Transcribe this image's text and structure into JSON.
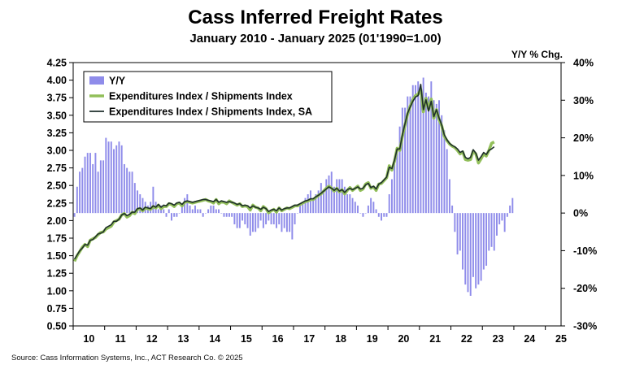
{
  "chart_data": {
    "type": "bar+line",
    "title": "Cass Inferred Freight Rates",
    "subtitle": "January 2010 - January 2025 (01'1990=1.00)",
    "right_axis_title": "Y/Y % Chg.",
    "source": "Source: Cass Information Systems, Inc., ACT Research Co. © 2025",
    "left_axis": {
      "ylim": [
        0.5,
        4.25
      ],
      "ticks": [
        "4.25",
        "4.00",
        "3.75",
        "3.50",
        "3.25",
        "3.00",
        "2.75",
        "2.50",
        "2.25",
        "2.00",
        "1.75",
        "1.50",
        "1.25",
        "1.00",
        "0.75",
        "0.50"
      ]
    },
    "right_axis": {
      "ylim": [
        -30,
        40
      ],
      "ticks": [
        "40%",
        "30%",
        "20%",
        "10%",
        "0%",
        "-10%",
        "-20%",
        "-30%"
      ]
    },
    "x_ticks": [
      "10",
      "11",
      "12",
      "13",
      "14",
      "15",
      "16",
      "17",
      "18",
      "19",
      "20",
      "21",
      "22",
      "23",
      "24",
      "25"
    ],
    "legend": [
      "Y/Y",
      "Expenditures Index / Shipments Index",
      "Expenditures Index / Shipments Index, SA"
    ],
    "colors": {
      "bars": "#8f8cea",
      "nsa": "#92bf5a",
      "sa": "#1f2f2b"
    },
    "series": [
      {
        "name": "Y/Y",
        "kind": "bar",
        "unit": "%",
        "x_start": 2010,
        "values": [
          -1,
          7,
          11,
          12,
          15,
          16,
          16,
          13,
          16,
          11,
          14,
          14,
          20,
          19,
          19,
          17,
          18,
          19,
          18,
          13,
          12,
          11,
          11,
          8,
          6,
          5,
          4,
          3,
          2,
          3,
          7,
          3,
          1,
          2,
          1,
          -1,
          1,
          -2,
          -1,
          -1,
          0,
          2,
          4,
          5,
          2,
          1,
          2,
          1,
          1,
          -1,
          0,
          1,
          2,
          2,
          1,
          1,
          0,
          -1,
          -1,
          -1,
          -1,
          -3,
          -4,
          -4,
          -2,
          -3,
          -4,
          -6,
          -5,
          -5,
          -4,
          -2,
          -4,
          -3,
          -2,
          -3,
          -3,
          -4,
          -3,
          -5,
          -4,
          -5,
          -5,
          -7,
          -3,
          0,
          2,
          3,
          4,
          5,
          6,
          4,
          5,
          6,
          8,
          6,
          9,
          10,
          11,
          7,
          9,
          9,
          9,
          7,
          5,
          5,
          4,
          3,
          2,
          0,
          -1,
          0,
          2,
          4,
          3,
          1,
          -1,
          -2,
          -1,
          -1,
          5,
          9,
          13,
          17,
          23,
          28,
          28,
          31,
          31,
          34,
          34,
          35,
          34,
          36,
          32,
          31,
          35,
          30,
          29,
          30,
          26,
          22,
          17,
          9,
          2,
          -5,
          -11,
          -10,
          -15,
          -19,
          -21,
          -22,
          -17,
          -20,
          -19,
          -18,
          -15,
          -14,
          -10,
          -9,
          -10,
          -6,
          -3,
          -2,
          -5,
          -1,
          2,
          4
        ]
      },
      {
        "name": "Expenditures Index / Shipments Index",
        "kind": "line",
        "x_start": 2010,
        "values": [
          1.42,
          1.5,
          1.56,
          1.62,
          1.66,
          1.63,
          1.72,
          1.74,
          1.76,
          1.8,
          1.83,
          1.84,
          1.88,
          1.9,
          1.92,
          1.98,
          2.0,
          2.02,
          2.08,
          2.1,
          2.05,
          2.07,
          2.12,
          2.1,
          2.16,
          2.17,
          2.14,
          2.18,
          2.17,
          2.16,
          2.2,
          2.18,
          2.22,
          2.17,
          2.2,
          2.2,
          2.24,
          2.23,
          2.2,
          2.24,
          2.25,
          2.21,
          2.26,
          2.27,
          2.26,
          2.25,
          2.26,
          2.27,
          2.28,
          2.29,
          2.3,
          2.28,
          2.27,
          2.25,
          2.3,
          2.24,
          2.27,
          2.26,
          2.24,
          2.28,
          2.26,
          2.24,
          2.22,
          2.24,
          2.2,
          2.21,
          2.2,
          2.15,
          2.22,
          2.19,
          2.18,
          2.14,
          2.2,
          2.17,
          2.11,
          2.14,
          2.16,
          2.12,
          2.18,
          2.14,
          2.16,
          2.18,
          2.17,
          2.19,
          2.21,
          2.21,
          2.23,
          2.25,
          2.27,
          2.28,
          2.3,
          2.3,
          2.33,
          2.36,
          2.38,
          2.42,
          2.46,
          2.49,
          2.46,
          2.42,
          2.46,
          2.41,
          2.44,
          2.38,
          2.43,
          2.47,
          2.43,
          2.46,
          2.49,
          2.43,
          2.45,
          2.52,
          2.54,
          2.46,
          2.48,
          2.43,
          2.52,
          2.53,
          2.57,
          2.61,
          2.78,
          2.72,
          2.85,
          3.03,
          3.0,
          3.2,
          3.36,
          3.52,
          3.63,
          3.72,
          3.78,
          3.8,
          3.87,
          3.55,
          3.74,
          3.58,
          3.73,
          3.46,
          3.58,
          3.44,
          3.35,
          3.2,
          3.14,
          3.09,
          3.06,
          3.04,
          3.0,
          2.95,
          2.98,
          2.87,
          2.86,
          2.87,
          2.99,
          2.95,
          2.82,
          2.88,
          2.95,
          2.92,
          3.0,
          3.1,
          3.12
        ]
      },
      {
        "name": "Expenditures Index / Shipments Index, SA",
        "kind": "line",
        "x_start": 2010,
        "values": [
          1.45,
          1.51,
          1.57,
          1.61,
          1.66,
          1.65,
          1.72,
          1.73,
          1.77,
          1.81,
          1.82,
          1.84,
          1.9,
          1.92,
          1.94,
          1.99,
          1.99,
          2.02,
          2.08,
          2.1,
          2.07,
          2.09,
          2.12,
          2.12,
          2.17,
          2.18,
          2.15,
          2.19,
          2.18,
          2.17,
          2.21,
          2.19,
          2.23,
          2.19,
          2.22,
          2.21,
          2.25,
          2.24,
          2.22,
          2.25,
          2.26,
          2.23,
          2.27,
          2.28,
          2.27,
          2.26,
          2.27,
          2.28,
          2.29,
          2.3,
          2.3,
          2.29,
          2.28,
          2.27,
          2.3,
          2.26,
          2.28,
          2.27,
          2.26,
          2.27,
          2.26,
          2.25,
          2.23,
          2.24,
          2.21,
          2.22,
          2.21,
          2.18,
          2.21,
          2.19,
          2.18,
          2.16,
          2.19,
          2.17,
          2.13,
          2.15,
          2.16,
          2.14,
          2.18,
          2.15,
          2.17,
          2.18,
          2.18,
          2.2,
          2.22,
          2.22,
          2.24,
          2.26,
          2.28,
          2.29,
          2.31,
          2.31,
          2.34,
          2.36,
          2.39,
          2.42,
          2.45,
          2.48,
          2.46,
          2.43,
          2.46,
          2.42,
          2.44,
          2.4,
          2.44,
          2.46,
          2.44,
          2.46,
          2.48,
          2.45,
          2.46,
          2.51,
          2.53,
          2.47,
          2.49,
          2.45,
          2.52,
          2.54,
          2.58,
          2.62,
          2.76,
          2.74,
          2.86,
          3.02,
          3.02,
          3.22,
          3.38,
          3.53,
          3.62,
          3.7,
          3.76,
          3.78,
          3.94,
          3.58,
          3.72,
          3.56,
          3.7,
          3.48,
          3.58,
          3.46,
          3.36,
          3.22,
          3.15,
          3.1,
          3.07,
          3.05,
          3.02,
          2.97,
          2.99,
          2.9,
          2.88,
          2.9,
          3.01,
          2.96,
          2.86,
          2.91,
          2.97,
          2.94,
          3.0,
          3.02,
          3.05
        ]
      }
    ]
  }
}
